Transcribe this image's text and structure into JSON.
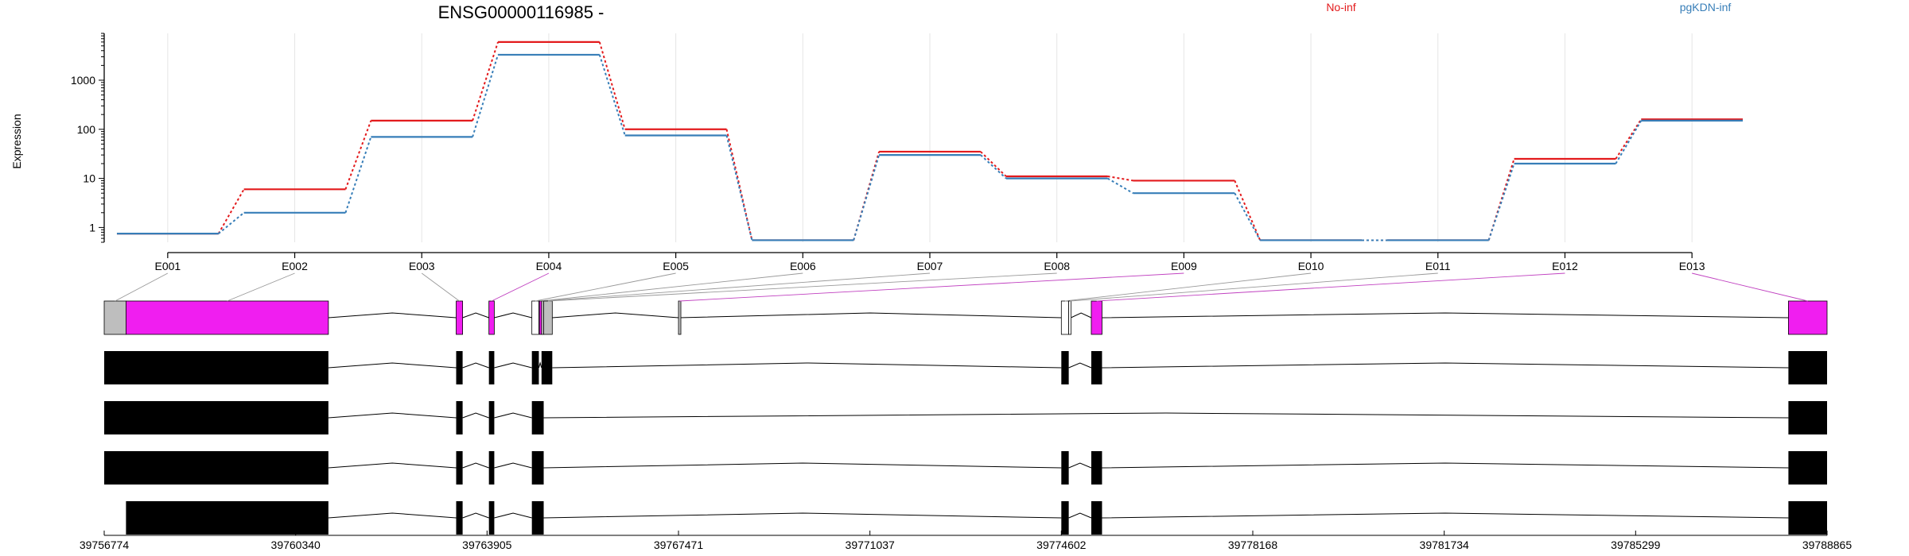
{
  "chart_data": {
    "type": "line",
    "title": "ENSG00000116985 -",
    "ylabel": "Expression",
    "yscale": "log",
    "ylim": [
      0.5,
      9000
    ],
    "yticks": [
      1,
      10,
      100,
      1000
    ],
    "ytick_labels": [
      "1",
      "10",
      "100",
      "1000"
    ],
    "categories": [
      "E001",
      "E002",
      "E003",
      "E004",
      "E005",
      "E006",
      "E007",
      "E008",
      "E009",
      "E010",
      "E011",
      "E012",
      "E013"
    ],
    "legend_position": "top",
    "series": [
      {
        "name": "No-inf",
        "color": "#e31a1c",
        "values": [
          0.75,
          6,
          150,
          6000,
          100,
          0.55,
          35,
          11,
          9,
          0.55,
          0.55,
          25,
          160
        ]
      },
      {
        "name": "pgKDN-inf",
        "color": "#377eb8",
        "values": [
          0.75,
          2,
          70,
          3300,
          75,
          0.55,
          30,
          10,
          5,
          0.55,
          0.55,
          20,
          150
        ]
      }
    ],
    "exon_colors": [
      "#bebebe",
      "#f01ef0",
      "#f01ef0",
      "#f01ef0",
      "#ffffff",
      "#f01ef0",
      "#bebebe",
      "#bebebe",
      "#bebebe",
      "#ffffff",
      "#ffffff",
      "#f01ef0",
      "#f01ef0"
    ],
    "exon_link_colors": [
      "#999999",
      "#999999",
      "#999999",
      "#c040c0",
      "#999999",
      "#999999",
      "#999999",
      "#999999",
      "#c040c0",
      "#999999",
      "#999999",
      "#c040c0",
      "#c040c0"
    ],
    "genomic_axis": {
      "min": 39756774,
      "max": 39788865,
      "ticks": [
        39756774,
        39760340,
        39763905,
        39767471,
        39771037,
        39774602,
        39778168,
        39781734,
        39785299,
        39788865
      ],
      "tick_labels": [
        "39756774",
        "39760340",
        "39763905",
        "39767471",
        "39771037",
        "39774602",
        "39778168",
        "39781734",
        "39785299",
        "39788865"
      ]
    },
    "exon_genomic_ranges": [
      [
        39756774,
        39757180
      ],
      [
        39757180,
        39760950
      ],
      [
        39763330,
        39763450
      ],
      [
        39763940,
        39764040
      ],
      [
        39764740,
        39764870
      ],
      [
        39764880,
        39764920
      ],
      [
        39764920,
        39764960
      ],
      [
        39764960,
        39765120
      ],
      [
        39767471,
        39767480
      ],
      [
        39774602,
        39774740
      ],
      [
        39774740,
        39774780
      ],
      [
        39775160,
        39775360
      ],
      [
        39788145,
        39788865
      ]
    ],
    "transcripts": [
      [
        [
          39756774,
          39760950
        ],
        [
          39763330,
          39763450
        ],
        [
          39763940,
          39764040
        ],
        [
          39764740,
          39764870
        ],
        [
          39764920,
          39765120
        ],
        [
          39774602,
          39774740
        ],
        [
          39775160,
          39775360
        ],
        [
          39788145,
          39788865
        ]
      ],
      [
        [
          39756774,
          39760950
        ],
        [
          39763330,
          39763450
        ],
        [
          39763940,
          39764040
        ],
        [
          39764740,
          39764960
        ],
        [
          39788145,
          39788865
        ]
      ],
      [
        [
          39756774,
          39760950
        ],
        [
          39763330,
          39763450
        ],
        [
          39763940,
          39764040
        ],
        [
          39764740,
          39764960
        ],
        [
          39774602,
          39774740
        ],
        [
          39775160,
          39775360
        ],
        [
          39788145,
          39788865
        ]
      ],
      [
        [
          39757180,
          39760950
        ],
        [
          39763330,
          39763450
        ],
        [
          39763940,
          39764040
        ],
        [
          39764740,
          39764960
        ],
        [
          39774602,
          39774740
        ],
        [
          39775160,
          39775360
        ],
        [
          39788145,
          39788865
        ]
      ]
    ]
  }
}
